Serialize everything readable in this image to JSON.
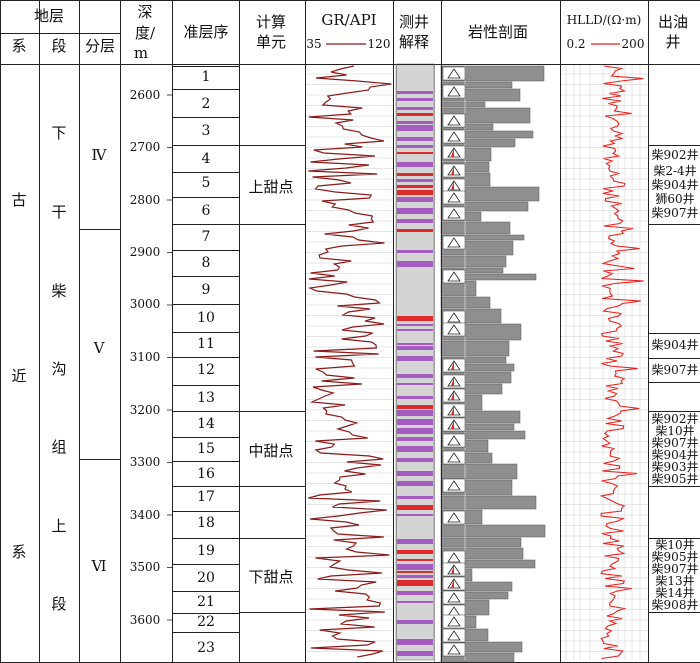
{
  "header": {
    "strata": "地层",
    "system": "系",
    "series_col": "段",
    "subzone": "分层",
    "depth": [
      "深",
      "度/",
      "m"
    ],
    "sequence": "准层序",
    "unit": [
      "计算",
      "单元"
    ],
    "gr_title": "GR/API",
    "gr_min": "35",
    "gr_max": "120",
    "logging": [
      "测井",
      "解释"
    ],
    "lithology": "岩性剖面",
    "hlld_title": "HLLD/(Ω·m)",
    "hlld_min": "0.2",
    "hlld_max": "200",
    "oil": [
      "出油",
      "井"
    ]
  },
  "system_chars": [
    "古",
    "近",
    "系"
  ],
  "series_chars": [
    "下",
    "干",
    "柴",
    "沟",
    "组",
    "上",
    "段"
  ],
  "zones": [
    "Ⅳ",
    "Ⅴ",
    "Ⅵ"
  ],
  "depth_ticks": [
    "2600",
    "2700",
    "2800",
    "2900",
    "3000",
    "3100",
    "3200",
    "3300",
    "3400",
    "3500",
    "3600"
  ],
  "sequences": [
    "1",
    "2",
    "3",
    "4",
    "5",
    "6",
    "7",
    "8",
    "9",
    "10",
    "11",
    "12",
    "13",
    "14",
    "15",
    "16",
    "17",
    "18",
    "19",
    "20",
    "21",
    "22",
    "23"
  ],
  "units": [
    "上甜点",
    "中甜点",
    "下甜点"
  ],
  "oil_groups": {
    "g1": [
      "柴902井",
      "柴2-4井",
      "柴904井",
      "狮60井",
      "柴907井"
    ],
    "g2": [
      "柴904井"
    ],
    "g3": [
      "柴907井"
    ],
    "g4": [
      "柴902井",
      "柴10井",
      "柴907井",
      "柴904井",
      "柴903井",
      "柴905井"
    ],
    "g5": [
      "柴10井",
      "柴905井",
      "柴907井",
      "柴13井",
      "柴14井",
      "柴908井"
    ]
  },
  "colors": {
    "gr_curve": "#8b1a1a",
    "hlld_curve": "#e8221e",
    "interp_purple": "#a45cc0",
    "interp_red": "#dd2a2a",
    "interp_gray": "#d4d4d4",
    "litho_gray": "#8f8f8f"
  },
  "icons": [
    "triangle-icon",
    "oil-triangle-icon"
  ]
}
